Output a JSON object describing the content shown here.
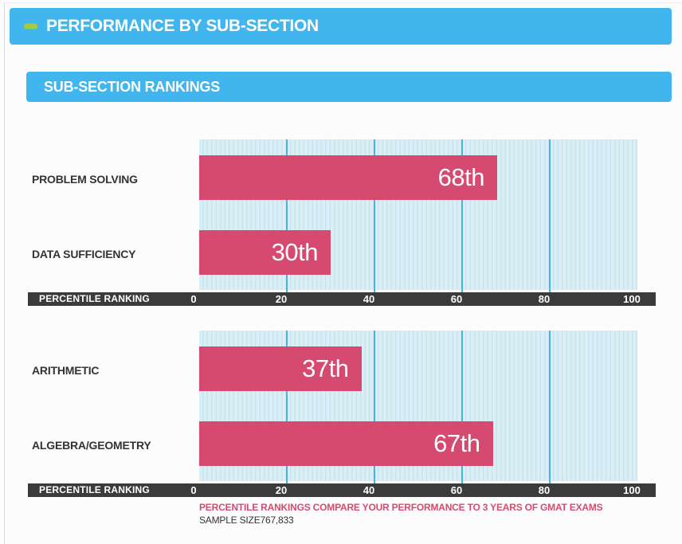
{
  "page": {
    "title": "PERFORMANCE BY SUB-SECTION",
    "subtitle": "SUB-SECTION RANKINGS"
  },
  "colors": {
    "header_blue": "#41b5ee",
    "dash_green": "#a6ca3d",
    "bar_pink": "#d74a70",
    "axis_bar_dark": "#3b3b3b",
    "gridline_cyan": "#47b5d9",
    "plot_background": "#daeef6"
  },
  "footer": {
    "note": "PERCENTILE RANKINGS COMPARE YOUR PERFORMANCE TO 3 YEARS OF GMAT EXAMS",
    "sample_label": "SAMPLE SIZE",
    "sample_value": "767,833"
  },
  "chart_data": [
    {
      "type": "bar",
      "orientation": "horizontal",
      "categories": [
        "PROBLEM SOLVING",
        "DATA SUFFICIENCY"
      ],
      "values": [
        68,
        30
      ],
      "value_labels": [
        "68th",
        "30th"
      ],
      "axis_label": "PERCENTILE RANKING",
      "xticks": [
        0,
        20,
        40,
        60,
        80,
        100
      ],
      "xlim": [
        0,
        100
      ],
      "grid": true,
      "legend": "none"
    },
    {
      "type": "bar",
      "orientation": "horizontal",
      "categories": [
        "ARITHMETIC",
        "ALGEBRA/GEOMETRY"
      ],
      "values": [
        37,
        67
      ],
      "value_labels": [
        "37th",
        "67th"
      ],
      "axis_label": "PERCENTILE RANKING",
      "xticks": [
        0,
        20,
        40,
        60,
        80,
        100
      ],
      "xlim": [
        0,
        100
      ],
      "grid": true,
      "legend": "none"
    }
  ]
}
